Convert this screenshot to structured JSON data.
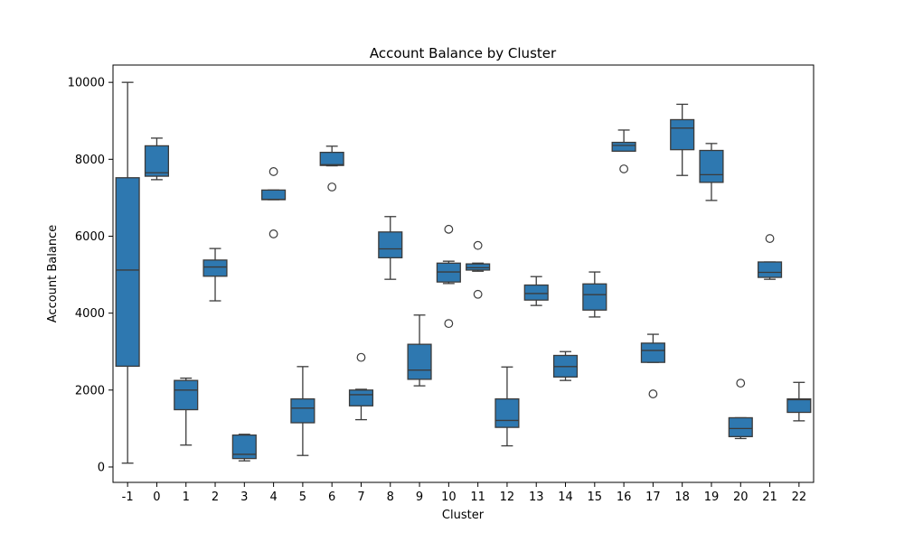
{
  "chart_data": {
    "type": "box",
    "title": "Account Balance by Cluster",
    "xlabel": "Cluster",
    "ylabel": "Account Balance",
    "ylim": [
      -400,
      10450
    ],
    "yticks": [
      0,
      2000,
      4000,
      6000,
      8000,
      10000
    ],
    "categories": [
      "-1",
      "0",
      "1",
      "2",
      "3",
      "4",
      "5",
      "6",
      "7",
      "8",
      "9",
      "10",
      "11",
      "12",
      "13",
      "14",
      "15",
      "16",
      "17",
      "18",
      "19",
      "20",
      "21",
      "22"
    ],
    "boxes": [
      {
        "min": 100,
        "q1": 2620,
        "median": 5120,
        "q3": 7520,
        "max": 10000,
        "outliers": []
      },
      {
        "min": 7470,
        "q1": 7560,
        "median": 7650,
        "q3": 8350,
        "max": 8550,
        "outliers": []
      },
      {
        "min": 570,
        "q1": 1490,
        "median": 2000,
        "q3": 2250,
        "max": 2310,
        "outliers": []
      },
      {
        "min": 4320,
        "q1": 4960,
        "median": 5200,
        "q3": 5380,
        "max": 5680,
        "outliers": []
      },
      {
        "min": 160,
        "q1": 220,
        "median": 330,
        "q3": 830,
        "max": 850,
        "outliers": []
      },
      {
        "min": 6950,
        "q1": 6950,
        "median": 6960,
        "q3": 7200,
        "max": 7200,
        "outliers": [
          7680,
          6060
        ]
      },
      {
        "min": 300,
        "q1": 1150,
        "median": 1530,
        "q3": 1770,
        "max": 2610,
        "outliers": []
      },
      {
        "min": 7830,
        "q1": 7840,
        "median": 7860,
        "q3": 8180,
        "max": 8340,
        "outliers": [
          7280
        ]
      },
      {
        "min": 1230,
        "q1": 1590,
        "median": 1880,
        "q3": 2000,
        "max": 2020,
        "outliers": [
          2850
        ]
      },
      {
        "min": 4880,
        "q1": 5440,
        "median": 5670,
        "q3": 6110,
        "max": 6510,
        "outliers": []
      },
      {
        "min": 2110,
        "q1": 2280,
        "median": 2520,
        "q3": 3190,
        "max": 3950,
        "outliers": []
      },
      {
        "min": 4770,
        "q1": 4810,
        "median": 5070,
        "q3": 5300,
        "max": 5350,
        "outliers": [
          6180,
          3730
        ]
      },
      {
        "min": 5090,
        "q1": 5120,
        "median": 5180,
        "q3": 5280,
        "max": 5300,
        "outliers": [
          5760,
          4490
        ]
      },
      {
        "min": 550,
        "q1": 1030,
        "median": 1210,
        "q3": 1770,
        "max": 2600,
        "outliers": []
      },
      {
        "min": 4200,
        "q1": 4340,
        "median": 4510,
        "q3": 4730,
        "max": 4950,
        "outliers": []
      },
      {
        "min": 2250,
        "q1": 2340,
        "median": 2610,
        "q3": 2900,
        "max": 3000,
        "outliers": []
      },
      {
        "min": 3900,
        "q1": 4080,
        "median": 4480,
        "q3": 4760,
        "max": 5070,
        "outliers": []
      },
      {
        "min": 8210,
        "q1": 8210,
        "median": 8360,
        "q3": 8440,
        "max": 8760,
        "outliers": [
          7750
        ]
      },
      {
        "min": 2720,
        "q1": 2720,
        "median": 3030,
        "q3": 3220,
        "max": 3450,
        "outliers": [
          1900
        ]
      },
      {
        "min": 7580,
        "q1": 8250,
        "median": 8810,
        "q3": 9030,
        "max": 9430,
        "outliers": []
      },
      {
        "min": 6930,
        "q1": 7400,
        "median": 7600,
        "q3": 8230,
        "max": 8410,
        "outliers": []
      },
      {
        "min": 740,
        "q1": 790,
        "median": 1000,
        "q3": 1280,
        "max": 1280,
        "outliers": [
          2180
        ]
      },
      {
        "min": 4880,
        "q1": 4930,
        "median": 5060,
        "q3": 5330,
        "max": 5330,
        "outliers": [
          5940
        ]
      },
      {
        "min": 1200,
        "q1": 1420,
        "median": 1750,
        "q3": 1770,
        "max": 2200,
        "outliers": []
      }
    ],
    "grid": false,
    "legend": "none",
    "box_color": "#2e78b0",
    "line_color": "#3b3b3b"
  }
}
